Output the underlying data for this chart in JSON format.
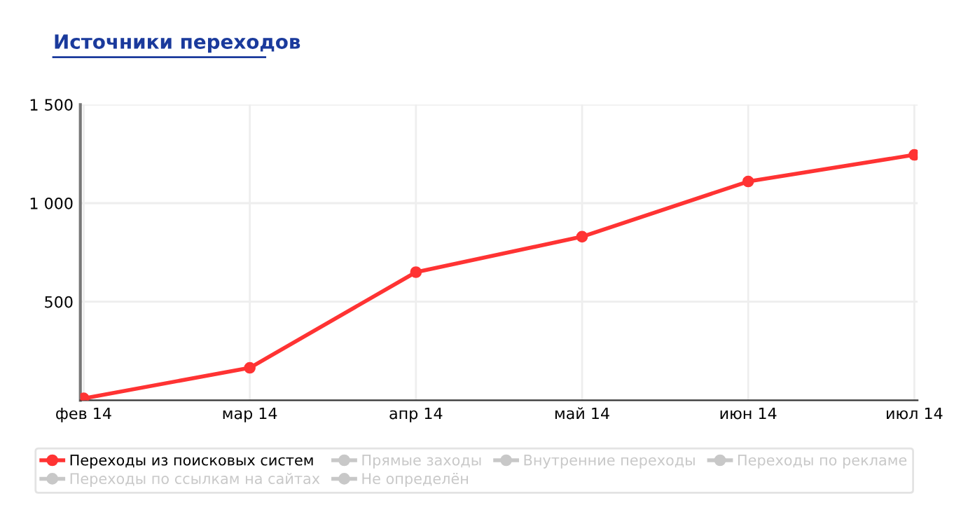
{
  "chart_data": {
    "type": "line",
    "title": "Источники переходов",
    "categories": [
      "фев 14",
      "мар 14",
      "апр 14",
      "май 14",
      "июн 14",
      "июл 14"
    ],
    "series": [
      {
        "name": "Переходы из поисковых систем",
        "color": "#ff3333",
        "values": [
          10,
          165,
          650,
          830,
          1110,
          1245
        ]
      },
      {
        "name": "Прямые заходы",
        "color": "#c8c8c8",
        "values": [
          null,
          null,
          null,
          null,
          null,
          null
        ]
      },
      {
        "name": "Внутренние переходы",
        "color": "#c8c8c8",
        "values": [
          null,
          null,
          null,
          null,
          null,
          null
        ]
      },
      {
        "name": "Переходы по рекламе",
        "color": "#c8c8c8",
        "values": [
          null,
          null,
          null,
          null,
          null,
          null
        ]
      },
      {
        "name": "Переходы по ссылкам на сайтах",
        "color": "#c8c8c8",
        "values": [
          null,
          null,
          null,
          null,
          null,
          null
        ]
      },
      {
        "name": "Не определён",
        "color": "#c8c8c8",
        "values": [
          null,
          null,
          null,
          null,
          null,
          null
        ]
      }
    ],
    "ylim": [
      0,
      1500
    ],
    "yticks": [
      500,
      {
        "value": 1000,
        "label": "1 000"
      },
      {
        "value": 1500,
        "label": "1 500"
      }
    ],
    "grid": true,
    "legend": "bottom",
    "marker": "circle",
    "line_style": "solid"
  }
}
